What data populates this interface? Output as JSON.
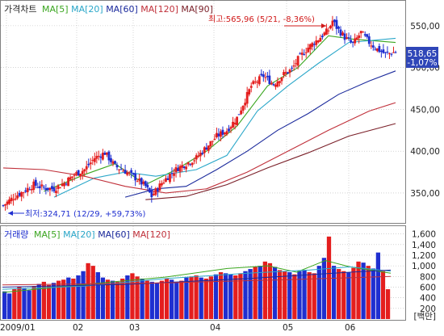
{
  "price_panel": {
    "title": "가격차트",
    "ma_legend": [
      {
        "label": "MA[5]",
        "color": "#3aa61f"
      },
      {
        "label": "MA[20]",
        "color": "#2aa7c9"
      },
      {
        "label": "MA[60]",
        "color": "#1b2a9c"
      },
      {
        "label": "MA[120]",
        "color": "#c0303a"
      },
      {
        "label": "MA[90]",
        "color": "#7a1f28"
      }
    ],
    "y_ticks": [
      "550,00",
      "500,00",
      "450,00",
      "400,00",
      "350,00"
    ],
    "last_price": "518,65",
    "last_change": "-1,07%",
    "high_annotation": "최고:565,96 (5/21, -8,36%)",
    "low_annotation": "최저:324,71 (12/29, +59,73%)"
  },
  "volume_panel": {
    "title": "거래량",
    "ma_legend": [
      {
        "label": "MA[5]",
        "color": "#3aa61f"
      },
      {
        "label": "MA[20]",
        "color": "#2aa7c9"
      },
      {
        "label": "MA[60]",
        "color": "#1b2a9c"
      },
      {
        "label": "MA[120]",
        "color": "#c0303a"
      }
    ],
    "y_ticks": [
      "1,600",
      "1,400",
      "1,200",
      "1,000",
      "800",
      "600",
      "400",
      "200",
      "[백만]"
    ]
  },
  "x_ticks": [
    "2009/01",
    "02",
    "03",
    "04",
    "05",
    "06"
  ],
  "colors": {
    "up": "#e41e1e",
    "down": "#1f2fd0",
    "grid": "#b8b8b8",
    "frame": "#808080",
    "last_box": "#2f46b8"
  },
  "chart_data": [
    {
      "type": "candlestick",
      "ylim": [
        320,
        575
      ],
      "high": {
        "value": 565.96,
        "date": "5/21",
        "change_pct": -8.36
      },
      "low": {
        "value": 324.71,
        "date": "12/29",
        "change_pct": 59.73
      },
      "last": {
        "value": 518.65,
        "change_pct": -1.07
      },
      "close_path": [
        [
          0,
          335
        ],
        [
          5,
          345
        ],
        [
          10,
          352
        ],
        [
          15,
          360
        ],
        [
          20,
          356
        ],
        [
          25,
          355
        ],
        [
          30,
          362
        ],
        [
          35,
          372
        ],
        [
          40,
          378
        ],
        [
          45,
          392
        ],
        [
          50,
          398
        ],
        [
          55,
          382
        ],
        [
          60,
          376
        ],
        [
          65,
          368
        ],
        [
          70,
          358
        ],
        [
          73,
          346
        ],
        [
          78,
          362
        ],
        [
          82,
          372
        ],
        [
          86,
          380
        ],
        [
          90,
          385
        ],
        [
          95,
          392
        ],
        [
          100,
          405
        ],
        [
          105,
          418
        ],
        [
          110,
          425
        ],
        [
          115,
          440
        ],
        [
          122,
          478
        ],
        [
          128,
          490
        ],
        [
          133,
          480
        ],
        [
          138,
          492
        ],
        [
          142,
          498
        ],
        [
          145,
          510
        ],
        [
          150,
          524
        ],
        [
          155,
          534
        ],
        [
          160,
          545
        ],
        [
          162,
          556
        ],
        [
          164,
          548
        ],
        [
          168,
          536
        ],
        [
          172,
          528
        ],
        [
          176,
          542
        ],
        [
          180,
          530
        ],
        [
          184,
          522
        ],
        [
          188,
          516
        ],
        [
          193,
          518.65
        ]
      ],
      "moving_averages": [
        {
          "name": "MA[5]",
          "values": [
            [
              20,
              352
            ],
            [
              40,
              372
            ],
            [
              55,
              385
            ],
            [
              70,
              360
            ],
            [
              85,
              378
            ],
            [
              100,
              400
            ],
            [
              115,
              430
            ],
            [
              130,
              478
            ],
            [
              145,
              500
            ],
            [
              160,
              538
            ],
            [
              172,
              534
            ],
            [
              193,
              530
            ]
          ]
        },
        {
          "name": "MA[20]",
          "values": [
            [
              25,
              345
            ],
            [
              45,
              368
            ],
            [
              60,
              375
            ],
            [
              75,
              370
            ],
            [
              95,
              378
            ],
            [
              110,
              395
            ],
            [
              125,
              448
            ],
            [
              140,
              478
            ],
            [
              155,
              505
            ],
            [
              170,
              530
            ],
            [
              193,
              535
            ]
          ]
        },
        {
          "name": "MA[60]",
          "values": [
            [
              60,
              345
            ],
            [
              75,
              355
            ],
            [
              90,
              358
            ],
            [
              105,
              378
            ],
            [
              120,
              400
            ],
            [
              135,
              425
            ],
            [
              150,
              445
            ],
            [
              165,
              468
            ],
            [
              180,
              484
            ],
            [
              193,
              496
            ]
          ]
        },
        {
          "name": "MA[120]",
          "values": [
            [
              0,
              380
            ],
            [
              20,
              378
            ],
            [
              40,
              370
            ],
            [
              60,
              358
            ],
            [
              80,
              350
            ],
            [
              100,
              355
            ],
            [
              120,
              375
            ],
            [
              140,
              400
            ],
            [
              160,
              425
            ],
            [
              180,
              448
            ],
            [
              193,
              458
            ]
          ]
        },
        {
          "name": "MA[90]",
          "values": [
            [
              70,
              342
            ],
            [
              90,
              346
            ],
            [
              110,
              360
            ],
            [
              130,
              380
            ],
            [
              150,
              398
            ],
            [
              170,
              418
            ],
            [
              193,
              433
            ]
          ]
        }
      ]
    },
    {
      "type": "bar",
      "ylim": [
        0,
        1700
      ],
      "values": [
        520,
        480,
        560,
        610,
        580,
        540,
        620,
        660,
        700,
        640,
        680,
        720,
        740,
        780,
        760,
        820,
        900,
        1050,
        1000,
        880,
        780,
        740,
        720,
        700,
        760,
        820,
        860,
        800,
        760,
        720,
        700,
        680,
        720,
        760,
        740,
        700,
        720,
        780,
        800,
        820,
        780,
        760,
        800,
        840,
        880,
        860,
        840,
        820,
        860,
        900,
        940,
        980,
        1000,
        1080,
        1050,
        980,
        920,
        900,
        880,
        840,
        900,
        920,
        880,
        860,
        1000,
        1150,
        1550,
        1000,
        940,
        900,
        880,
        960,
        1080,
        1060,
        1000,
        950,
        1250,
        900,
        560
      ],
      "moving_averages": [
        {
          "name": "MA[5]",
          "values": [
            [
              0,
              500
            ],
            [
              20,
              650
            ],
            [
              40,
              790
            ],
            [
              55,
              950
            ],
            [
              65,
              1000
            ],
            [
              72,
              880
            ],
            [
              79,
              1100
            ],
            [
              85,
              980
            ],
            [
              95,
              860
            ]
          ]
        },
        {
          "name": "MA[20]",
          "values": [
            [
              0,
              560
            ],
            [
              20,
              620
            ],
            [
              40,
              760
            ],
            [
              60,
              860
            ],
            [
              75,
              920
            ],
            [
              85,
              980
            ],
            [
              95,
              900
            ]
          ]
        },
        {
          "name": "MA[60]",
          "values": [
            [
              0,
              600
            ],
            [
              30,
              650
            ],
            [
              60,
              760
            ],
            [
              85,
              880
            ],
            [
              95,
              920
            ]
          ]
        },
        {
          "name": "MA[120]",
          "values": [
            [
              0,
              640
            ],
            [
              40,
              680
            ],
            [
              70,
              740
            ],
            [
              95,
              800
            ]
          ]
        }
      ]
    }
  ]
}
